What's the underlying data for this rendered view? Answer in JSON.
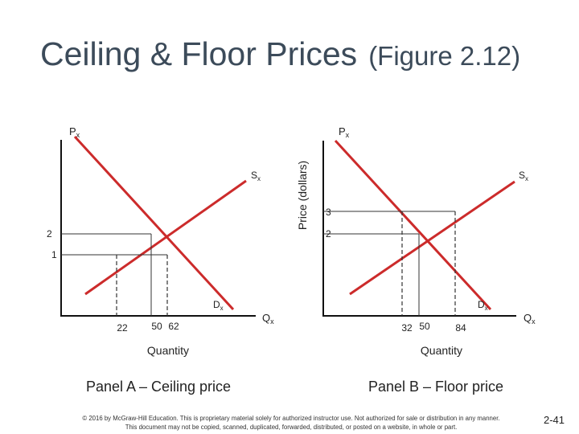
{
  "slide": {
    "title": "Ceiling & Floor Prices",
    "title_suffix": "(Figure 2.12)",
    "page_number": "2-41",
    "copyright_line1": "© 2016 by McGraw-Hill Education. This is proprietary material solely for authorized instructor use. Not authorized for sale or distribution in any manner.",
    "copyright_line2": "This document may not be copied, scanned, duplicated, forwarded, distributed, or posted on a website, in whole or part."
  },
  "shared": {
    "y_axis_title": "Price (dollars)",
    "x_axis_title": "Quantity",
    "y_axis_label_main": "P",
    "x_axis_label_main": "Q",
    "subscript": "x",
    "supply_label_main": "S",
    "demand_label_main": "D"
  },
  "panel_a": {
    "caption": "Panel A – Ceiling price",
    "price_ticks": [
      "2",
      "1"
    ],
    "quantity_ticks": [
      "22",
      "50",
      "62"
    ]
  },
  "panel_b": {
    "caption": "Panel B – Floor price",
    "price_ticks": [
      "3",
      "2"
    ],
    "quantity_ticks": [
      "32",
      "50",
      "84"
    ]
  },
  "colors": {
    "supply_line": "#cc2b2b",
    "demand_line": "#cc2b2b",
    "axis": "#111111",
    "guide_line": "#333333"
  }
}
